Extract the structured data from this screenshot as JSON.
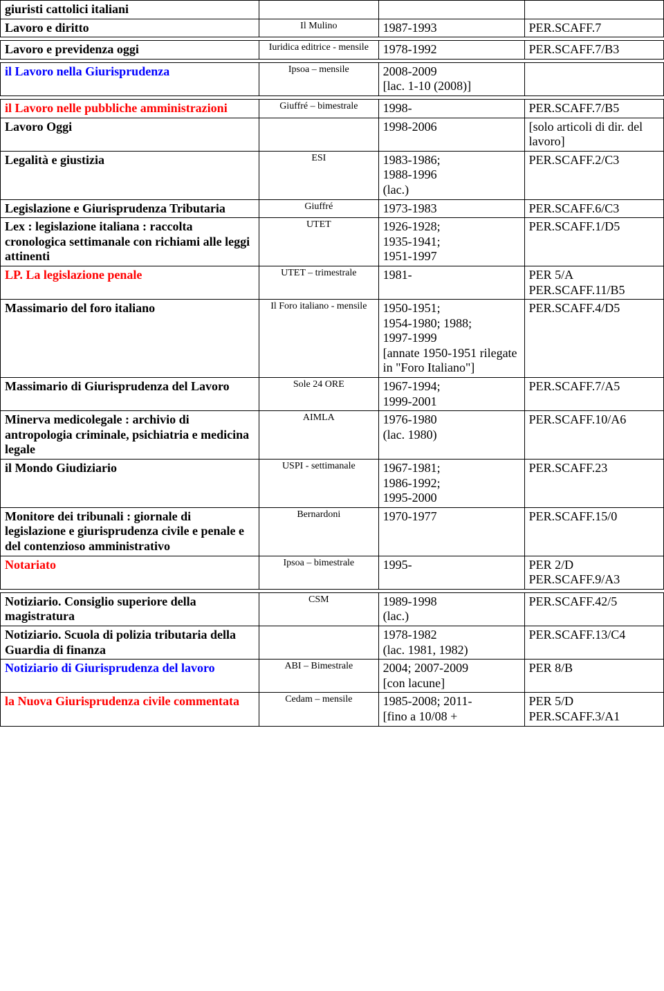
{
  "rows": [
    {
      "c1": {
        "text": "giuristi cattolici italiani",
        "bold": true
      },
      "c2": {
        "text": ""
      },
      "c3": {
        "text": ""
      },
      "c4": {
        "text": ""
      }
    },
    {
      "c1": {
        "text": "Lavoro e diritto",
        "bold": true
      },
      "c2": {
        "text": "Il Mulino",
        "small": true,
        "center": true
      },
      "c3": {
        "text": "1987-1993"
      },
      "c4": {
        "text": "PER.SCAFF.7"
      }
    },
    {
      "spacer": true
    },
    {
      "c1": {
        "text": "Lavoro e previdenza oggi",
        "bold": true
      },
      "c2": {
        "text": "Iuridica editrice - mensile",
        "small": true,
        "center": true
      },
      "c3": {
        "text": "1978-1992"
      },
      "c4": {
        "text": "PER.SCAFF.7/B3"
      }
    },
    {
      "spacer": true
    },
    {
      "c1": {
        "html": "<span class=\"bold blue\">il Lavoro nella Giurisprudenza</span>"
      },
      "c2": {
        "text": "Ipsoa – mensile",
        "small": true,
        "center": true
      },
      "c3": {
        "text": "2008-2009\n[lac. 1-10 (2008)]"
      },
      "c4": {
        "text": ""
      }
    },
    {
      "spacer": true
    },
    {
      "c1": {
        "html": "<span class=\"bold red\">il Lavoro nelle pubbliche amministrazioni</span>"
      },
      "c2": {
        "text": "Giuffré – bimestrale",
        "small": true,
        "center": true
      },
      "c3": {
        "text": "1998-"
      },
      "c4": {
        "text": "PER.SCAFF.7/B5"
      }
    },
    {
      "c1": {
        "text": "Lavoro Oggi",
        "bold": true
      },
      "c2": {
        "text": ""
      },
      "c3": {
        "text": "1998-2006"
      },
      "c4": {
        "text": "[solo articoli di dir. del lavoro]"
      }
    },
    {
      "c1": {
        "text": "Legalità e giustizia",
        "bold": true
      },
      "c2": {
        "text": "ESI",
        "small": true,
        "center": true
      },
      "c3": {
        "text": "1983-1986;\n1988-1996\n(lac.)"
      },
      "c4": {
        "text": "PER.SCAFF.2/C3"
      }
    },
    {
      "c1": {
        "text": "Legislazione e Giurisprudenza Tributaria",
        "bold": true
      },
      "c2": {
        "text": "Giuffré",
        "small": true,
        "center": true
      },
      "c3": {
        "text": "1973-1983"
      },
      "c4": {
        "text": "PER.SCAFF.6/C3"
      }
    },
    {
      "c1": {
        "text": "Lex : legislazione italiana : raccolta cronologica settimanale con richiami alle leggi attinenti",
        "bold": true
      },
      "c2": {
        "text": "UTET",
        "small": true,
        "center": true
      },
      "c3": {
        "text": "1926-1928;\n1935-1941;\n1951-1997"
      },
      "c4": {
        "text": "PER.SCAFF.1/D5"
      }
    },
    {
      "c1": {
        "html": "<span class=\"bold red\">LP. La legislazione penale</span>"
      },
      "c2": {
        "text": "UTET – trimestrale",
        "small": true,
        "center": true
      },
      "c3": {
        "text": "1981-"
      },
      "c4": {
        "text": "PER 5/A\nPER.SCAFF.11/B5"
      }
    },
    {
      "c1": {
        "text": "Massimario del foro italiano",
        "bold": true
      },
      "c2": {
        "text": "Il Foro italiano - mensile",
        "small": true,
        "center": true
      },
      "c3": {
        "text": "1950-1951;\n1954-1980; 1988;\n1997-1999\n[annate 1950-1951 rilegate in \"Foro Italiano\"]"
      },
      "c4": {
        "text": "PER.SCAFF.4/D5"
      }
    },
    {
      "c1": {
        "text": "Massimario di Giurisprudenza del Lavoro",
        "bold": true
      },
      "c2": {
        "text": "Sole 24 ORE",
        "small": true,
        "center": true
      },
      "c3": {
        "text": "1967-1994;\n1999-2001"
      },
      "c4": {
        "text": "PER.SCAFF.7/A5"
      }
    },
    {
      "c1": {
        "text": "Minerva medicolegale : archivio di antropologia criminale, psichiatria e medicina legale",
        "bold": true
      },
      "c2": {
        "text": "AIMLA",
        "small": true,
        "center": true
      },
      "c3": {
        "text": "1976-1980\n(lac. 1980)"
      },
      "c4": {
        "text": "PER.SCAFF.10/A6"
      }
    },
    {
      "c1": {
        "text": "il Mondo Giudiziario",
        "bold": true
      },
      "c2": {
        "text": "USPI - settimanale",
        "small": true,
        "center": true
      },
      "c3": {
        "text": "1967-1981;\n1986-1992;\n1995-2000"
      },
      "c4": {
        "text": "PER.SCAFF.23"
      }
    },
    {
      "c1": {
        "text": "Monitore dei tribunali : giornale di legislazione e giurisprudenza civile e penale e del contenzioso amministrativo",
        "bold": true
      },
      "c2": {
        "text": "Bernardoni",
        "small": true,
        "center": true
      },
      "c3": {
        "text": "1970-1977"
      },
      "c4": {
        "text": "PER.SCAFF.15/0"
      }
    },
    {
      "c1": {
        "html": "<span class=\"bold red\">Notariato</span>"
      },
      "c2": {
        "text": "Ipsoa – bimestrale",
        "small": true,
        "center": true
      },
      "c3": {
        "text": "1995-"
      },
      "c4": {
        "text": "PER 2/D\nPER.SCAFF.9/A3"
      }
    },
    {
      "spacer": true
    },
    {
      "c1": {
        "text": "Notiziario. Consiglio superiore della magistratura",
        "bold": true
      },
      "c2": {
        "text": "CSM",
        "small": true,
        "center": true
      },
      "c3": {
        "text": "1989-1998\n(lac.)"
      },
      "c4": {
        "text": "PER.SCAFF.42/5"
      }
    },
    {
      "c1": {
        "text": "Notiziario. Scuola di polizia tributaria della Guardia di finanza",
        "bold": true
      },
      "c2": {
        "text": ""
      },
      "c3": {
        "text": "1978-1982\n(lac. 1981, 1982)"
      },
      "c4": {
        "text": "PER.SCAFF.13/C4"
      }
    },
    {
      "c1": {
        "html": "<span class=\"bold blue\">Notiziario di Giurisprudenza del lavoro</span>"
      },
      "c2": {
        "text": "ABI – Bimestrale",
        "small": true,
        "center": true
      },
      "c3": {
        "text": "2004; 2007-2009\n[con lacune]"
      },
      "c4": {
        "text": "PER 8/B"
      }
    },
    {
      "c1": {
        "html": "<span class=\"bold red\">la Nuova Giurisprudenza civile commentata</span>"
      },
      "c2": {
        "text": "Cedam – mensile",
        "small": true,
        "center": true
      },
      "c3": {
        "text": "1985-2008; 2011-\n[fino a 10/08 +"
      },
      "c4": {
        "text": "PER 5/D\nPER.SCAFF.3/A1"
      }
    }
  ]
}
